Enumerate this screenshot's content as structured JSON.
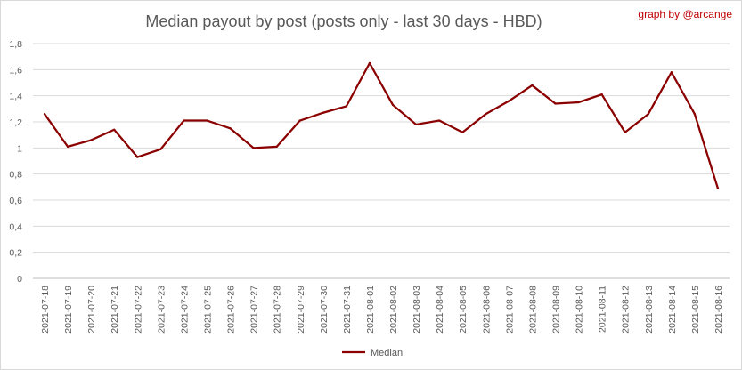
{
  "credit": "graph by @arcange",
  "chart_data": {
    "type": "line",
    "title": "Median payout by post (posts only - last 30 days - HBD)",
    "xlabel": "",
    "ylabel": "",
    "ylim": [
      0,
      1.8
    ],
    "yticks": [
      0,
      0.2,
      0.4,
      0.6,
      0.8,
      1,
      1.2,
      1.4,
      1.6,
      1.8
    ],
    "ytick_labels": [
      "0",
      "0,2",
      "0,4",
      "0,6",
      "0,8",
      "1",
      "1,2",
      "1,4",
      "1,6",
      "1,8"
    ],
    "grid": true,
    "legend": "bottom",
    "categories": [
      "2021-07-18",
      "2021-07-19",
      "2021-07-20",
      "2021-07-21",
      "2021-07-22",
      "2021-07-23",
      "2021-07-24",
      "2021-07-25",
      "2021-07-26",
      "2021-07-27",
      "2021-07-28",
      "2021-07-29",
      "2021-07-30",
      "2021-07-31",
      "2021-08-01",
      "2021-08-02",
      "2021-08-03",
      "2021-08-04",
      "2021-08-05",
      "2021-08-06",
      "2021-08-07",
      "2021-08-08",
      "2021-08-09",
      "2021-08-10",
      "2021-08-11",
      "2021-08-12",
      "2021-08-13",
      "2021-08-14",
      "2021-08-15",
      "2021-08-16"
    ],
    "series": [
      {
        "name": "Median",
        "color": "#8b0000",
        "values": [
          1.26,
          1.01,
          1.06,
          1.14,
          0.93,
          0.99,
          1.21,
          1.21,
          1.15,
          1.0,
          1.01,
          1.21,
          1.27,
          1.32,
          1.65,
          1.33,
          1.18,
          1.21,
          1.12,
          1.26,
          1.36,
          1.48,
          1.34,
          1.35,
          1.41,
          1.12,
          1.26,
          1.58,
          1.26,
          0.69
        ]
      }
    ]
  }
}
